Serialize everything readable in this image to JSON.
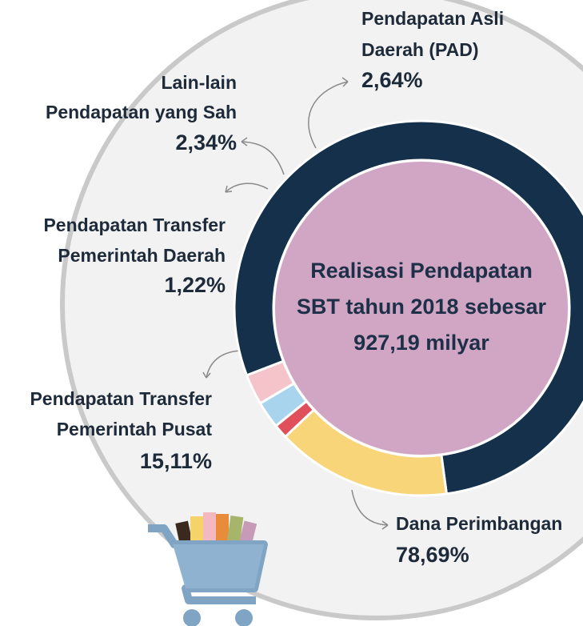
{
  "chart_data": {
    "type": "donut",
    "center_text": [
      "Realisasi Pendapatan",
      "SBT tahun 2018 sebesar",
      "927,19 milyar"
    ],
    "categories": [
      [
        "Dana Perimbangan"
      ],
      [
        "Pendapatan Transfer",
        "Pemerintah Pusat"
      ],
      [
        "Pendapatan Transfer",
        "Pemerintah Daerah"
      ],
      [
        "Lain-lain",
        "Pendapatan yang Sah"
      ],
      [
        "Pendapatan Asli",
        "Daerah (PAD)"
      ]
    ],
    "values": [
      78.69,
      15.11,
      1.22,
      2.34,
      2.64
    ],
    "value_labels": [
      "78,69%",
      "15,11%",
      "1,22%",
      "2,34%",
      "2,64%"
    ],
    "colors": [
      "#14304a",
      "#f9d57a",
      "#e0505b",
      "#a9d4ee",
      "#f5c4cb"
    ],
    "center_color": "#d0a6c4"
  }
}
